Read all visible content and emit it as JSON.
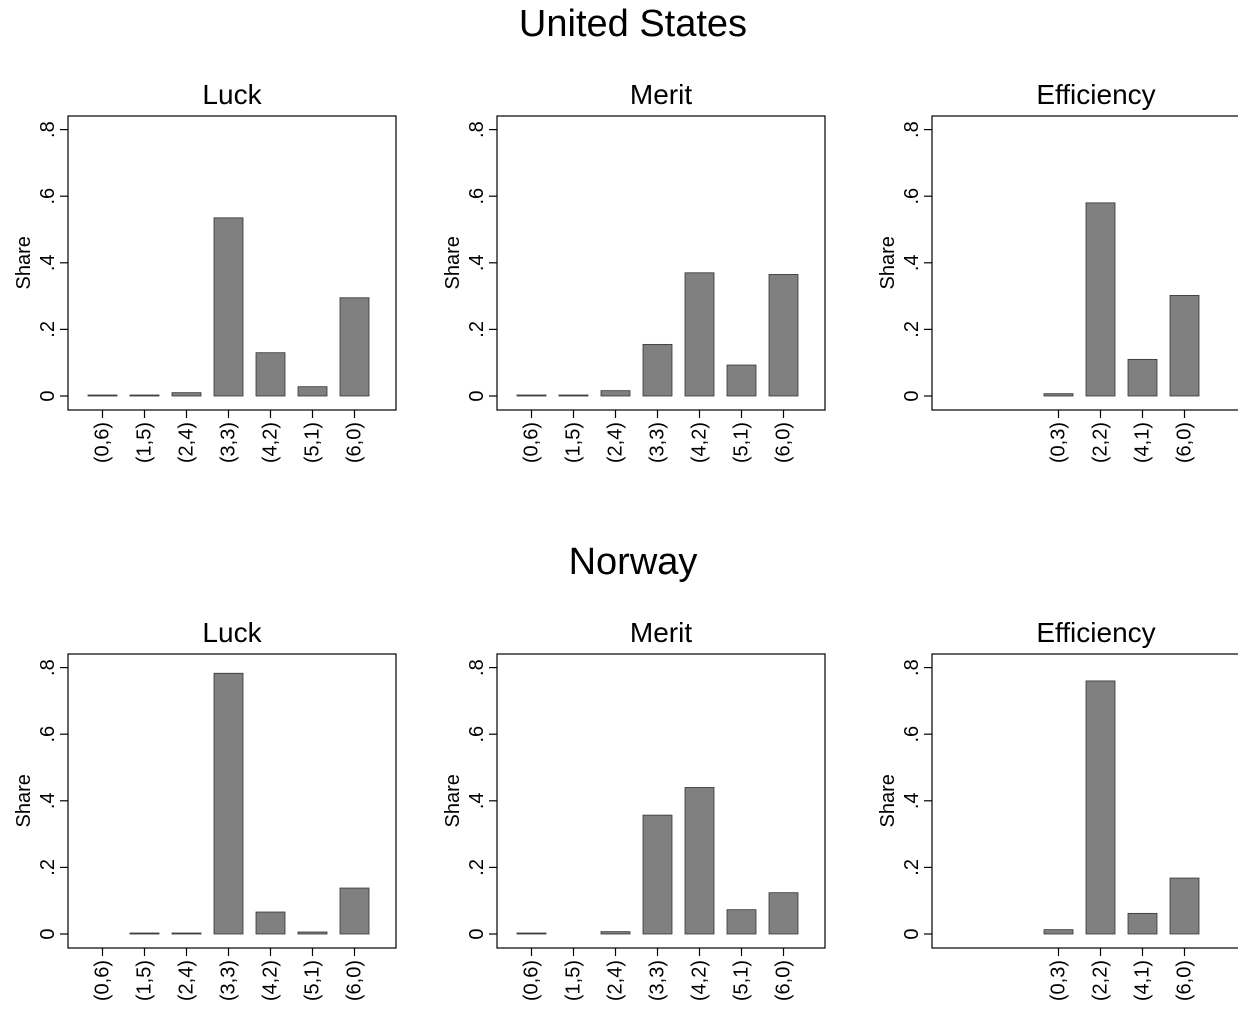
{
  "chart_data": [
    {
      "group": "United States",
      "panels": [
        {
          "type": "bar",
          "title": "Luck",
          "ylabel": "Share",
          "categories": [
            "(0,6)",
            "(1,5)",
            "(2,4)",
            "(3,3)",
            "(4,2)",
            "(5,1)",
            "(6,0)"
          ],
          "values": [
            0.003,
            0.003,
            0.01,
            0.535,
            0.13,
            0.028,
            0.295
          ],
          "ylim": [
            -0.04,
            0.84
          ],
          "yticks": [
            "0",
            ".2",
            ".4",
            ".6",
            ".8"
          ],
          "grid": false
        },
        {
          "type": "bar",
          "title": "Merit",
          "ylabel": "Share",
          "categories": [
            "(0,6)",
            "(1,5)",
            "(2,4)",
            "(3,3)",
            "(4,2)",
            "(5,1)",
            "(6,0)"
          ],
          "values": [
            0.003,
            0.003,
            0.016,
            0.155,
            0.37,
            0.093,
            0.365
          ],
          "ylim": [
            -0.04,
            0.84
          ],
          "yticks": [
            "0",
            ".2",
            ".4",
            ".6",
            ".8"
          ],
          "grid": false
        },
        {
          "type": "bar",
          "title": "Efficiency",
          "ylabel": "Share",
          "categories": [
            "(0,3)",
            "(2,2)",
            "(4,1)",
            "(6,0)"
          ],
          "values": [
            0.007,
            0.58,
            0.11,
            0.302
          ],
          "ylim": [
            -0.04,
            0.84
          ],
          "yticks": [
            "0",
            ".2",
            ".4",
            ".6",
            ".8"
          ],
          "grid": false
        }
      ]
    },
    {
      "group": "Norway",
      "panels": [
        {
          "type": "bar",
          "title": "Luck",
          "ylabel": "Share",
          "categories": [
            "(0,6)",
            "(1,5)",
            "(2,4)",
            "(3,3)",
            "(4,2)",
            "(5,1)",
            "(6,0)"
          ],
          "values": [
            0.0,
            0.003,
            0.003,
            0.783,
            0.066,
            0.006,
            0.138
          ],
          "ylim": [
            -0.04,
            0.84
          ],
          "yticks": [
            "0",
            ".2",
            ".4",
            ".6",
            ".8"
          ],
          "grid": false
        },
        {
          "type": "bar",
          "title": "Merit",
          "ylabel": "Share",
          "categories": [
            "(0,6)",
            "(1,5)",
            "(2,4)",
            "(3,3)",
            "(4,2)",
            "(5,1)",
            "(6,0)"
          ],
          "values": [
            0.003,
            0.0,
            0.007,
            0.357,
            0.44,
            0.073,
            0.124
          ],
          "ylim": [
            -0.04,
            0.84
          ],
          "yticks": [
            "0",
            ".2",
            ".4",
            ".6",
            ".8"
          ],
          "grid": false
        },
        {
          "type": "bar",
          "title": "Efficiency",
          "ylabel": "Share",
          "categories": [
            "(0,3)",
            "(2,2)",
            "(4,1)",
            "(6,0)"
          ],
          "values": [
            0.013,
            0.76,
            0.062,
            0.168
          ],
          "ylim": [
            -0.04,
            0.84
          ],
          "yticks": [
            "0",
            ".2",
            ".4",
            ".6",
            ".8"
          ],
          "grid": false
        }
      ]
    }
  ],
  "colors": {
    "bar_fill": "#808080",
    "bar_stroke": "#333333",
    "axis": "#000000"
  }
}
